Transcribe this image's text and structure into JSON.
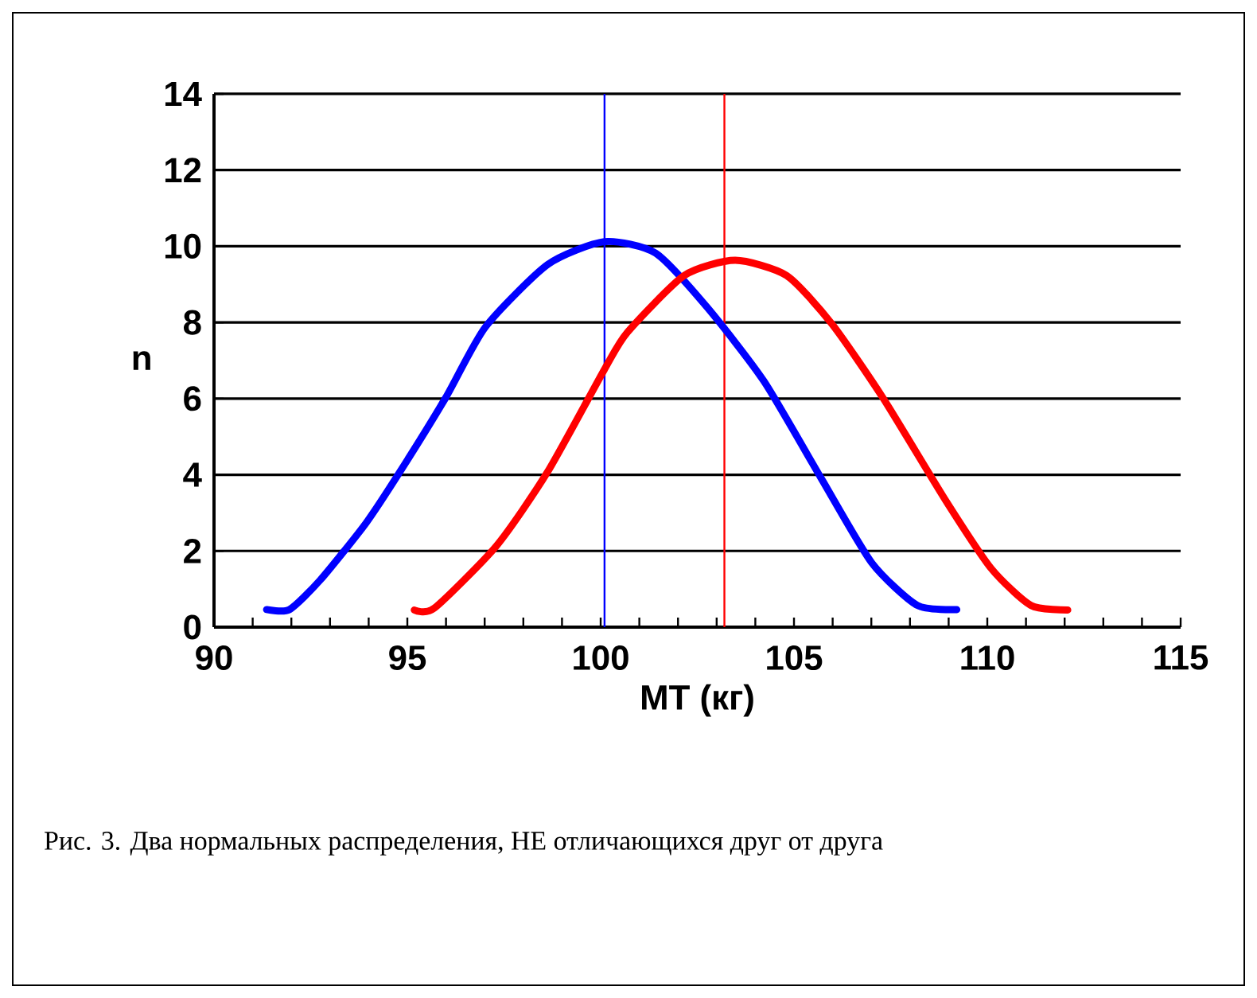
{
  "chart_data": {
    "type": "line",
    "xlabel": "МТ (кг)",
    "ylabel": "n",
    "annotations": [
      "Рис. 3. Два нормальных распределения, НЕ отличающихся друг от друга"
    ],
    "xlim": [
      90,
      115
    ],
    "xticks": [
      90,
      {
        "value": 91,
        "label": null
      },
      {
        "value": 92,
        "label": null
      },
      {
        "value": 93,
        "label": null
      },
      {
        "value": 94,
        "label": null
      },
      95,
      {
        "value": 96,
        "label": null
      },
      {
        "value": 97,
        "label": null
      },
      {
        "value": 98,
        "label": null
      },
      {
        "value": 99,
        "label": null
      },
      100,
      {
        "value": 101,
        "label": null
      },
      {
        "value": 102,
        "label": null
      },
      {
        "value": 103,
        "label": null
      },
      {
        "value": 104,
        "label": null
      },
      105,
      {
        "value": 106,
        "label": null
      },
      {
        "value": 107,
        "label": null
      },
      {
        "value": 108,
        "label": null
      },
      {
        "value": 109,
        "label": null
      },
      110,
      {
        "value": 111,
        "label": null
      },
      {
        "value": 112,
        "label": null
      },
      {
        "value": 113,
        "label": null
      },
      {
        "value": 114,
        "label": null
      },
      115
    ],
    "ylim": [
      0,
      14
    ],
    "yticks": [
      0,
      2,
      4,
      6,
      8,
      10,
      12,
      14
    ],
    "grid": "y",
    "marker": "none",
    "line_style": "solid",
    "series": [
      {
        "color": "#0000ff",
        "x": [
          91.36,
          91.95,
          92.75,
          93.93,
          94.81,
          95.99,
          97.02,
          98.63,
          100.1,
          101.42,
          102.75,
          104.22,
          105.69,
          107.01,
          108.19,
          109.21
        ],
        "values": [
          0.46,
          0.46,
          1.24,
          2.73,
          4.08,
          6.02,
          7.88,
          9.52,
          10.12,
          9.82,
          8.4,
          6.46,
          3.93,
          1.69,
          0.57,
          0.46
        ]
      },
      {
        "color": "#ff0000",
        "x": [
          95.18,
          95.7,
          97.31,
          98.63,
          100.1,
          100.69,
          102.16,
          103.48,
          104.81,
          105.98,
          107.3,
          108.92,
          110.1,
          111.13,
          112.08
        ],
        "values": [
          0.45,
          0.5,
          2.14,
          4.08,
          6.77,
          7.74,
          9.23,
          9.63,
          9.23,
          7.96,
          6.02,
          3.33,
          1.54,
          0.57,
          0.45
        ]
      }
    ],
    "ref_lines": [
      {
        "axis": "x",
        "value": 100.1,
        "color": "#0000ff"
      },
      {
        "axis": "x",
        "value": 103.2,
        "color": "#ff0000"
      }
    ]
  }
}
